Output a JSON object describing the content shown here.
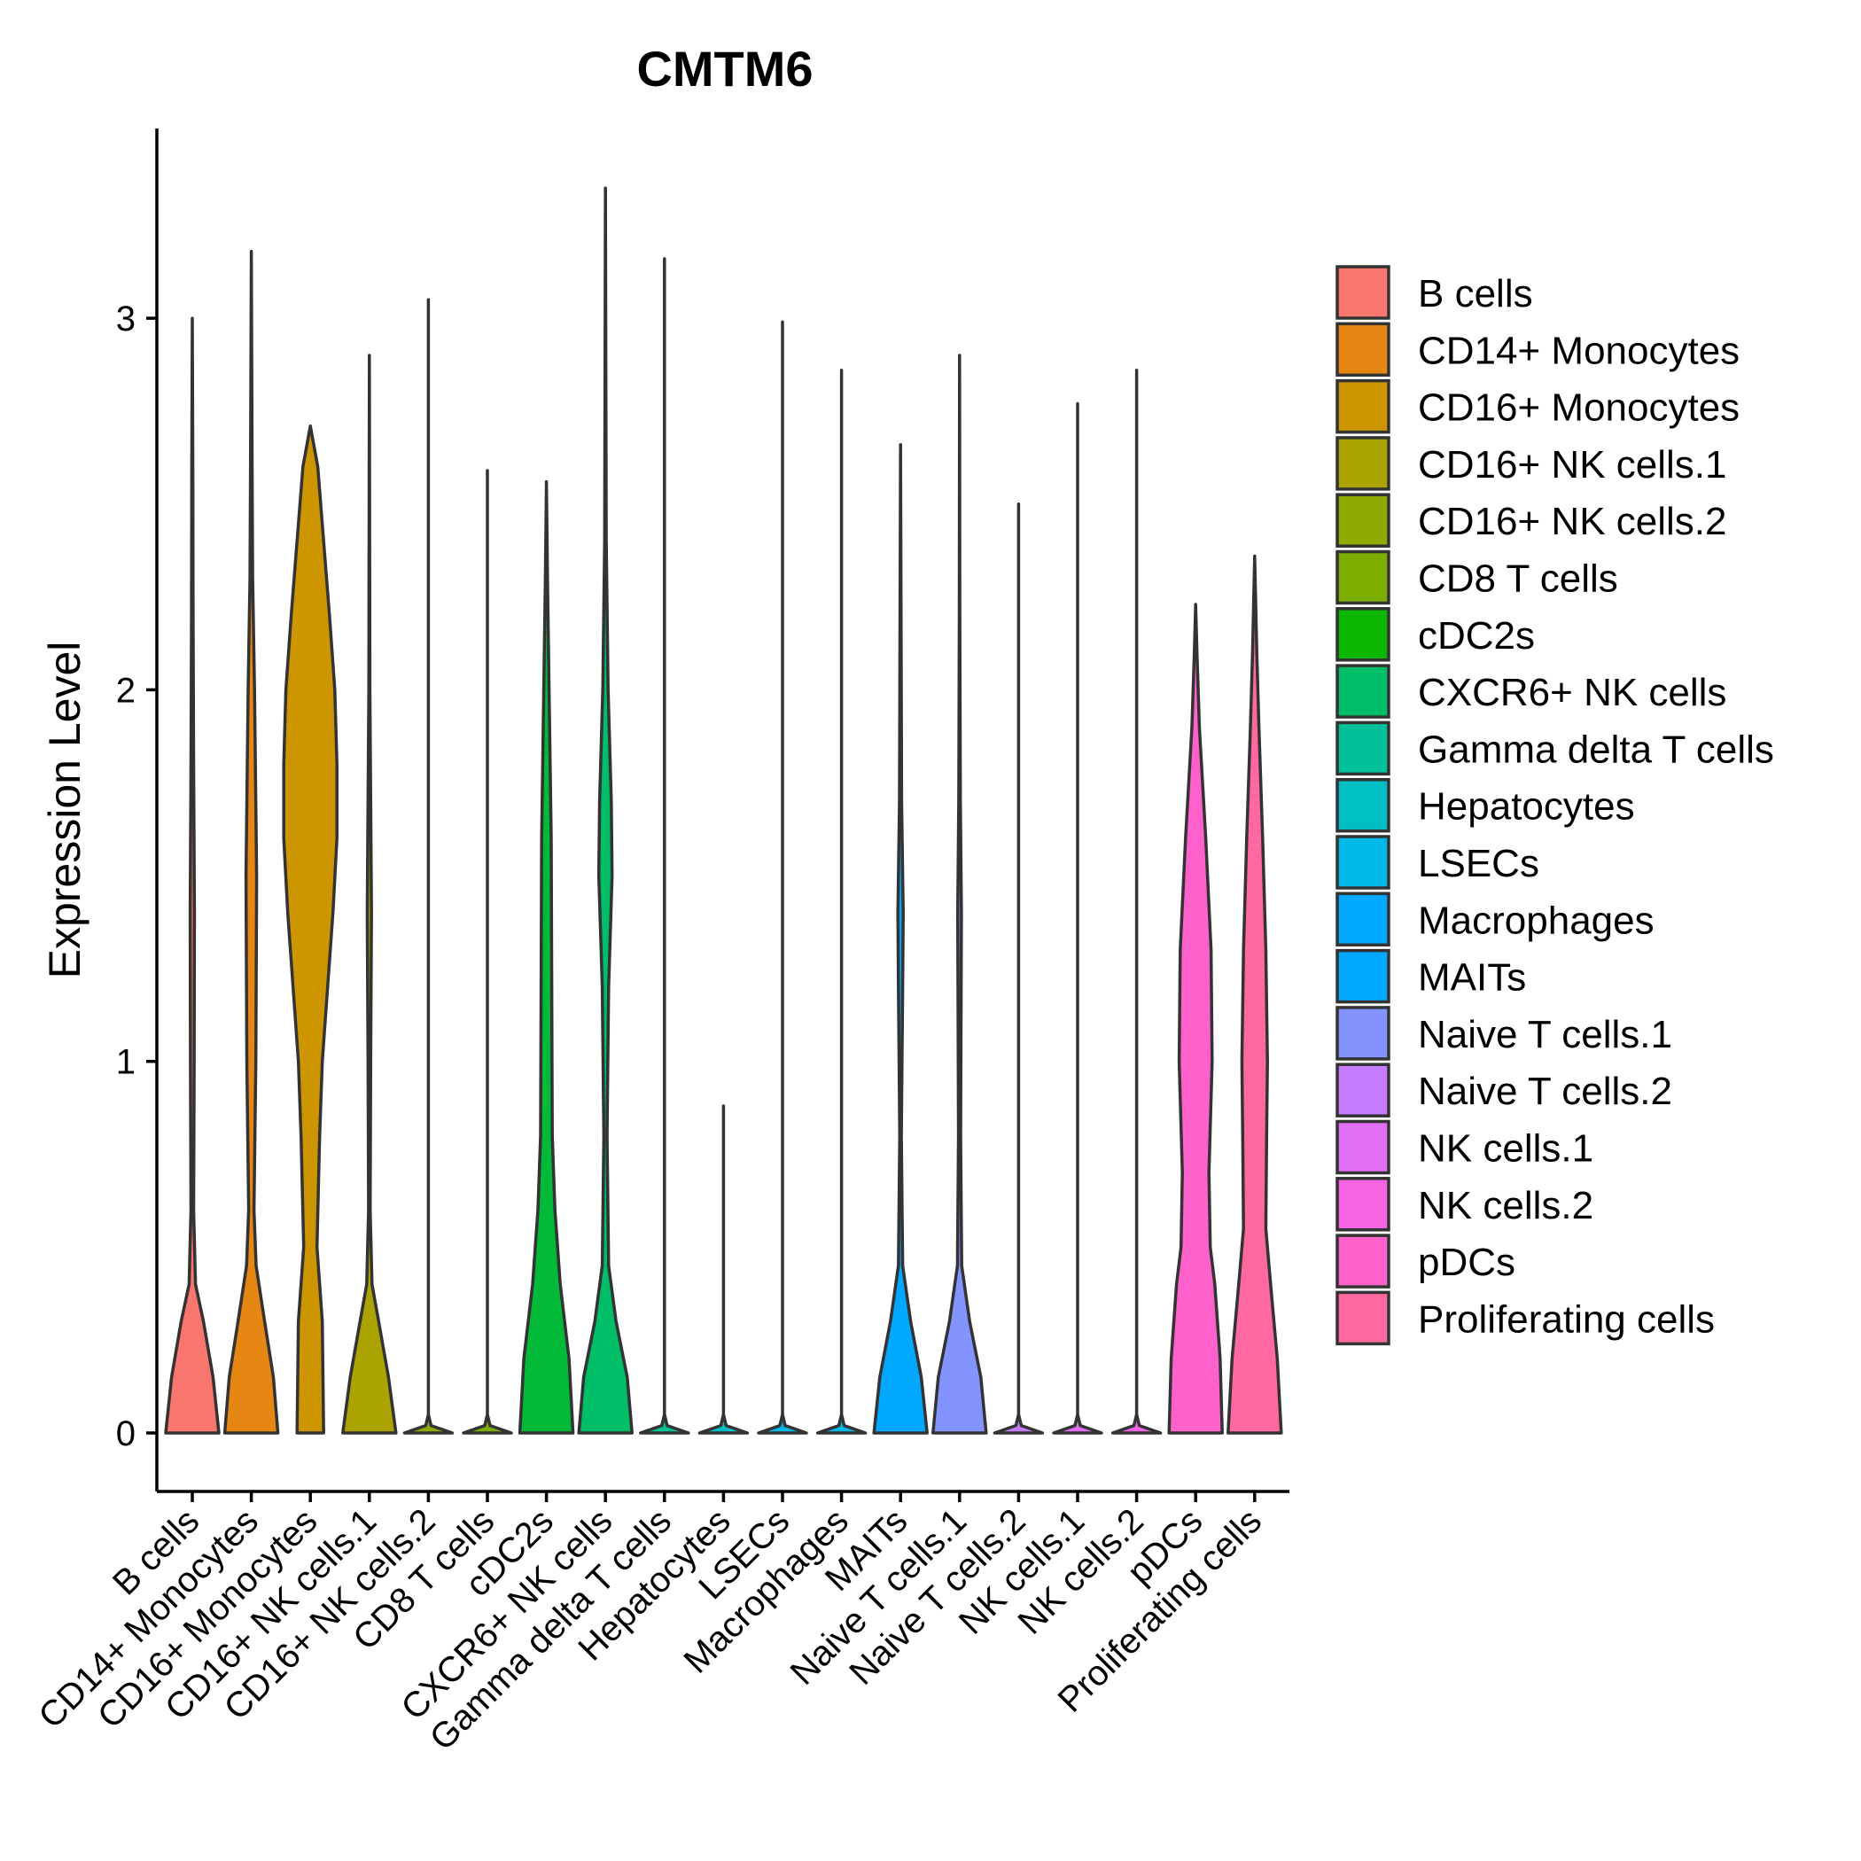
{
  "chart_data": {
    "type": "violin",
    "title": "CMTM6",
    "xlabel": "",
    "ylabel": "Expression Level",
    "ylim": [
      -0.16,
      3.47
    ],
    "yticks": [
      0,
      1,
      2,
      3
    ],
    "grid": false,
    "legend_position": "right",
    "categories": [
      "B cells",
      "CD14+ Monocytes",
      "CD16+ Monocytes",
      "CD16+ NK cells.1",
      "CD16+ NK cells.2",
      "CD8 T cells",
      "cDC2s",
      "CXCR6+ NK cells",
      "Gamma delta T cells",
      "Hepatocytes",
      "LSECs",
      "Macrophages",
      "MAITs",
      "Naive T cells.1",
      "Naive T cells.2",
      "NK cells.1",
      "NK cells.2",
      "pDCs",
      "Proliferating cells"
    ],
    "colors": [
      "#F8766D",
      "#E68613",
      "#CD9600",
      "#ABA300",
      "#7CAE00",
      "#0CB702",
      "#00BE67",
      "#00C19A",
      "#00BFC4",
      "#00B8E7",
      "#00A9FF",
      "#00A9FF",
      "#00A9FF",
      "#8494FF",
      "#C77CFF",
      "#ED68ED",
      "#FF61CC",
      "#FF61CC",
      "#FF68A1"
    ],
    "legend_colors": [
      "#F8766D",
      "#E68613",
      "#CD9600",
      "#ABA300",
      "#8FAA00",
      "#7CAE00",
      "#0CB702",
      "#00BE67",
      "#00C19A",
      "#00BFC4",
      "#00B8E7",
      "#00A9FF",
      "#00A9FF",
      "#8494FF",
      "#C77CFF",
      "#E36EF6",
      "#F564E3",
      "#FF61CC",
      "#FF68A1"
    ],
    "violin_colors": [
      "#F8766D",
      "#E68613",
      "#CD9600",
      "#ABA300",
      "#8FAA00",
      "#7CAE00",
      "#00BA38",
      "#00BE67",
      "#00C19A",
      "#00BFC4",
      "#00B8E7",
      "#00B8E7",
      "#00A9FF",
      "#8494FF",
      "#C77CFF",
      "#E36EF6",
      "#F564E3",
      "#FF61CC",
      "#FF68A1"
    ],
    "max_values": [
      3.0,
      3.18,
      2.71,
      2.9,
      3.05,
      2.59,
      2.56,
      3.35,
      3.16,
      0.88,
      2.99,
      2.86,
      2.66,
      2.9,
      2.5,
      2.77,
      2.86,
      2.23,
      2.36
    ],
    "density_profiles": [
      [
        [
          0,
          1.0
        ],
        [
          0.15,
          0.78
        ],
        [
          0.3,
          0.42
        ],
        [
          0.4,
          0.12
        ],
        [
          0.6,
          0.05
        ],
        [
          1.0,
          0.07
        ],
        [
          1.4,
          0.08
        ],
        [
          1.8,
          0.05
        ],
        [
          2.2,
          0.03
        ],
        [
          2.6,
          0.02
        ],
        [
          3.0,
          0.0
        ]
      ],
      [
        [
          0,
          1.0
        ],
        [
          0.15,
          0.83
        ],
        [
          0.3,
          0.5
        ],
        [
          0.45,
          0.18
        ],
        [
          0.6,
          0.1
        ],
        [
          1.0,
          0.17
        ],
        [
          1.5,
          0.2
        ],
        [
          2.0,
          0.12
        ],
        [
          2.3,
          0.05
        ],
        [
          2.6,
          0.03
        ],
        [
          3.18,
          0.0
        ]
      ],
      [
        [
          0,
          0.5
        ],
        [
          0.3,
          0.45
        ],
        [
          0.5,
          0.25
        ],
        [
          0.8,
          0.35
        ],
        [
          1.0,
          0.45
        ],
        [
          1.4,
          0.85
        ],
        [
          1.6,
          1.0
        ],
        [
          1.8,
          1.0
        ],
        [
          2.0,
          0.92
        ],
        [
          2.2,
          0.72
        ],
        [
          2.4,
          0.5
        ],
        [
          2.6,
          0.28
        ],
        [
          2.71,
          0.0
        ]
      ],
      [
        [
          0,
          1.0
        ],
        [
          0.15,
          0.72
        ],
        [
          0.3,
          0.35
        ],
        [
          0.4,
          0.1
        ],
        [
          0.6,
          0.03
        ],
        [
          1.0,
          0.05
        ],
        [
          1.4,
          0.08
        ],
        [
          1.6,
          0.06
        ],
        [
          2.0,
          0.02
        ],
        [
          2.9,
          0.0
        ]
      ],
      [
        [
          0,
          0.9
        ],
        [
          0.02,
          0.1
        ],
        [
          0.05,
          0.0
        ],
        [
          3.05,
          0.0
        ]
      ],
      [
        [
          0,
          0.9
        ],
        [
          0.02,
          0.1
        ],
        [
          0.05,
          0.0
        ],
        [
          2.59,
          0.0
        ]
      ],
      [
        [
          0,
          1.0
        ],
        [
          0.2,
          0.85
        ],
        [
          0.4,
          0.52
        ],
        [
          0.6,
          0.32
        ],
        [
          0.8,
          0.22
        ],
        [
          1.2,
          0.2
        ],
        [
          1.6,
          0.18
        ],
        [
          2.0,
          0.1
        ],
        [
          2.3,
          0.04
        ],
        [
          2.56,
          0.0
        ]
      ],
      [
        [
          0,
          1.0
        ],
        [
          0.15,
          0.82
        ],
        [
          0.3,
          0.4
        ],
        [
          0.45,
          0.12
        ],
        [
          0.8,
          0.06
        ],
        [
          1.2,
          0.12
        ],
        [
          1.5,
          0.25
        ],
        [
          1.7,
          0.22
        ],
        [
          2.0,
          0.1
        ],
        [
          2.4,
          0.03
        ],
        [
          3.35,
          0.0
        ]
      ],
      [
        [
          0,
          0.9
        ],
        [
          0.02,
          0.1
        ],
        [
          0.05,
          0.0
        ],
        [
          3.16,
          0.0
        ]
      ],
      [
        [
          0,
          0.9
        ],
        [
          0.02,
          0.1
        ],
        [
          0.05,
          0.0
        ],
        [
          0.88,
          0.0
        ]
      ],
      [
        [
          0,
          0.9
        ],
        [
          0.02,
          0.1
        ],
        [
          0.05,
          0.0
        ],
        [
          2.99,
          0.0
        ]
      ],
      [
        [
          0,
          0.9
        ],
        [
          0.02,
          0.1
        ],
        [
          0.05,
          0.0
        ],
        [
          2.86,
          0.0
        ]
      ],
      [
        [
          0,
          1.0
        ],
        [
          0.15,
          0.78
        ],
        [
          0.3,
          0.38
        ],
        [
          0.45,
          0.08
        ],
        [
          0.8,
          0.03
        ],
        [
          1.2,
          0.08
        ],
        [
          1.4,
          0.1
        ],
        [
          1.7,
          0.04
        ],
        [
          2.2,
          0.02
        ],
        [
          2.66,
          0.0
        ]
      ],
      [
        [
          0,
          1.0
        ],
        [
          0.15,
          0.8
        ],
        [
          0.3,
          0.38
        ],
        [
          0.45,
          0.08
        ],
        [
          0.8,
          0.04
        ],
        [
          1.2,
          0.06
        ],
        [
          1.4,
          0.07
        ],
        [
          1.7,
          0.03
        ],
        [
          2.2,
          0.01
        ],
        [
          2.9,
          0.0
        ]
      ],
      [
        [
          0,
          0.9
        ],
        [
          0.02,
          0.1
        ],
        [
          0.05,
          0.0
        ],
        [
          2.5,
          0.0
        ]
      ],
      [
        [
          0,
          0.9
        ],
        [
          0.02,
          0.1
        ],
        [
          0.05,
          0.0
        ],
        [
          2.77,
          0.0
        ]
      ],
      [
        [
          0,
          0.9
        ],
        [
          0.02,
          0.1
        ],
        [
          0.05,
          0.0
        ],
        [
          2.86,
          0.0
        ]
      ],
      [
        [
          0,
          1.0
        ],
        [
          0.2,
          0.92
        ],
        [
          0.4,
          0.72
        ],
        [
          0.5,
          0.55
        ],
        [
          0.7,
          0.5
        ],
        [
          1.0,
          0.62
        ],
        [
          1.3,
          0.58
        ],
        [
          1.6,
          0.38
        ],
        [
          1.9,
          0.14
        ],
        [
          2.1,
          0.05
        ],
        [
          2.23,
          0.0
        ]
      ],
      [
        [
          0,
          1.0
        ],
        [
          0.2,
          0.85
        ],
        [
          0.4,
          0.6
        ],
        [
          0.55,
          0.42
        ],
        [
          0.8,
          0.45
        ],
        [
          1.0,
          0.48
        ],
        [
          1.3,
          0.42
        ],
        [
          1.6,
          0.3
        ],
        [
          1.9,
          0.16
        ],
        [
          2.1,
          0.08
        ],
        [
          2.36,
          0.0
        ]
      ]
    ]
  }
}
